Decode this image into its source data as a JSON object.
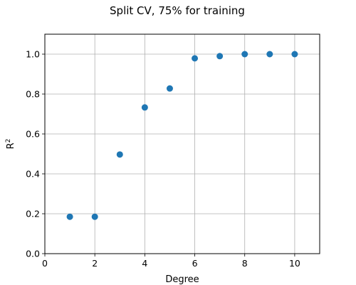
{
  "chart_data": {
    "type": "scatter",
    "title": "Split CV, 75% for training",
    "xlabel": "Degree",
    "ylabel": "R",
    "ylabel_sup": "2",
    "xlim": [
      0,
      11
    ],
    "ylim": [
      0,
      1.1
    ],
    "xticks": [
      0,
      2,
      4,
      6,
      8,
      10
    ],
    "yticks": [
      0.0,
      0.2,
      0.4,
      0.6,
      0.8,
      1.0
    ],
    "xtick_labels": [
      "0",
      "2",
      "4",
      "6",
      "8",
      "10"
    ],
    "ytick_labels": [
      "0.0",
      "0.2",
      "0.4",
      "0.6",
      "0.8",
      "1.0"
    ],
    "grid": true,
    "color": "#1f77b4",
    "points": [
      {
        "x": 1,
        "y": 0.185
      },
      {
        "x": 2,
        "y": 0.185
      },
      {
        "x": 3,
        "y": 0.497
      },
      {
        "x": 4,
        "y": 0.733
      },
      {
        "x": 5,
        "y": 0.828
      },
      {
        "x": 6,
        "y": 0.979
      },
      {
        "x": 7,
        "y": 0.99
      },
      {
        "x": 8,
        "y": 1.0
      },
      {
        "x": 9,
        "y": 1.0
      },
      {
        "x": 10,
        "y": 1.0
      }
    ]
  }
}
